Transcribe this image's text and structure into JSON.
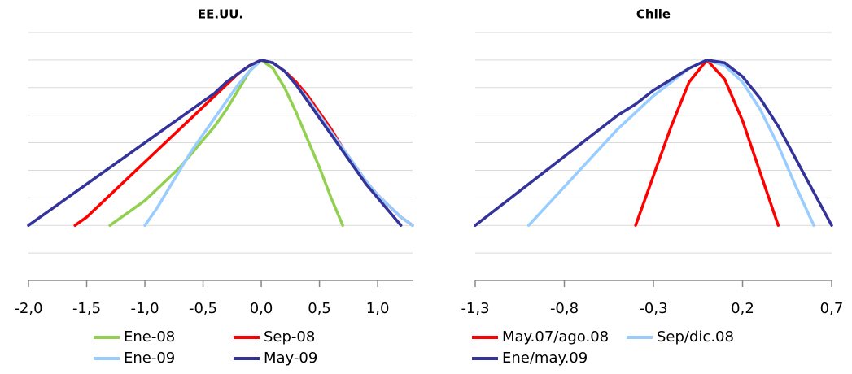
{
  "chart_data": [
    {
      "type": "line",
      "title": "EE.UU.",
      "x": [
        -2.0,
        -1.9,
        -1.8,
        -1.7,
        -1.6,
        -1.5,
        -1.4,
        -1.3,
        -1.2,
        -1.1,
        -1.0,
        -0.9,
        -0.8,
        -0.7,
        -0.6,
        -0.5,
        -0.4,
        -0.3,
        -0.2,
        -0.1,
        0.0,
        0.1,
        0.2,
        0.3,
        0.4,
        0.5,
        0.6,
        0.7,
        0.8,
        0.9,
        1.0,
        1.1,
        1.2,
        1.3
      ],
      "series": [
        {
          "name": "Ene-08",
          "color": "#92d050",
          "values": [
            null,
            null,
            null,
            null,
            null,
            null,
            null,
            0,
            0.3,
            0.6,
            0.9,
            1.3,
            1.7,
            2.1,
            2.6,
            3.1,
            3.6,
            4.2,
            4.9,
            5.6,
            6,
            5.7,
            5.0,
            4.1,
            3.1,
            2.1,
            1.0,
            0,
            null,
            null,
            null,
            null,
            null,
            null
          ]
        },
        {
          "name": "Sep-08",
          "color": "#ff0000",
          "values": [
            null,
            null,
            null,
            null,
            0,
            0.3,
            0.7,
            1.1,
            1.5,
            1.9,
            2.3,
            2.7,
            3.1,
            3.5,
            3.9,
            4.3,
            4.7,
            5.1,
            5.5,
            5.8,
            6,
            5.9,
            5.6,
            5.2,
            4.7,
            4.1,
            3.5,
            2.8,
            2.2,
            1.6,
            1.1,
            0.7,
            0.3,
            0
          ]
        },
        {
          "name": "Ene-09",
          "color": "#99ccff",
          "values": [
            null,
            null,
            null,
            null,
            null,
            null,
            null,
            null,
            null,
            null,
            0,
            0.6,
            1.3,
            2.0,
            2.7,
            3.3,
            3.9,
            4.5,
            5.1,
            5.6,
            6,
            5.9,
            5.6,
            5.1,
            4.6,
            4.0,
            3.4,
            2.8,
            2.2,
            1.6,
            1.1,
            0.7,
            0.3,
            0
          ]
        },
        {
          "name": "May-09",
          "color": "#333399",
          "values": [
            0,
            0.3,
            0.6,
            0.9,
            1.2,
            1.5,
            1.8,
            2.1,
            2.4,
            2.7,
            3.0,
            3.3,
            3.6,
            3.9,
            4.2,
            4.5,
            4.8,
            5.2,
            5.5,
            5.8,
            6,
            5.9,
            5.6,
            5.1,
            4.5,
            3.9,
            3.3,
            2.7,
            2.1,
            1.5,
            1.0,
            0.5,
            0,
            null
          ]
        }
      ],
      "xlim": [
        -2.0,
        1.3
      ],
      "xticks": [
        {
          "value": -2.0,
          "label": "-2,0"
        },
        {
          "value": -1.5,
          "label": "-1,5"
        },
        {
          "value": -1.0,
          "label": "-1,0"
        },
        {
          "value": -0.5,
          "label": "-0,5"
        },
        {
          "value": 0.0,
          "label": "0,0"
        },
        {
          "value": 0.5,
          "label": "0,5"
        },
        {
          "value": 1.0,
          "label": "1,0"
        }
      ],
      "ylim": [
        -2,
        7
      ],
      "yticks": [
        -1,
        0,
        1,
        2,
        3,
        4,
        5,
        6,
        7
      ],
      "grid": true
    },
    {
      "type": "line",
      "title": "Chile",
      "x": [
        -1.3,
        -1.2,
        -1.1,
        -1.0,
        -0.9,
        -0.8,
        -0.7,
        -0.6,
        -0.5,
        -0.4,
        -0.3,
        -0.2,
        -0.1,
        0.0,
        0.1,
        0.2,
        0.3,
        0.4,
        0.5,
        0.6,
        0.7
      ],
      "series": [
        {
          "name": "May.07/ago.08",
          "color": "#ff0000",
          "values": [
            null,
            null,
            null,
            null,
            null,
            null,
            null,
            null,
            null,
            0,
            1.8,
            3.6,
            5.2,
            6,
            5.3,
            3.8,
            1.9,
            0,
            null,
            null,
            null
          ]
        },
        {
          "name": "Sep/dic.08",
          "color": "#99ccff",
          "values": [
            null,
            null,
            null,
            0,
            0.7,
            1.4,
            2.1,
            2.8,
            3.5,
            4.1,
            4.7,
            5.2,
            5.7,
            6,
            5.8,
            5.2,
            4.2,
            2.9,
            1.4,
            0,
            null
          ]
        },
        {
          "name": "Ene/may.09",
          "color": "#333399",
          "values": [
            0,
            0.5,
            1.0,
            1.5,
            2.0,
            2.5,
            3.0,
            3.5,
            4.0,
            4.4,
            4.9,
            5.3,
            5.7,
            6,
            5.9,
            5.4,
            4.6,
            3.6,
            2.4,
            1.2,
            0
          ]
        }
      ],
      "xlim": [
        -1.3,
        0.7
      ],
      "xticks": [
        {
          "value": -1.3,
          "label": "-1,3"
        },
        {
          "value": -0.8,
          "label": "-0,8"
        },
        {
          "value": -0.3,
          "label": "-0,3"
        },
        {
          "value": 0.2,
          "label": "0,2"
        },
        {
          "value": 0.7,
          "label": "0,7"
        }
      ],
      "ylim": [
        -2,
        7
      ],
      "yticks": [
        -1,
        0,
        1,
        2,
        3,
        4,
        5,
        6,
        7
      ],
      "grid": true
    }
  ]
}
